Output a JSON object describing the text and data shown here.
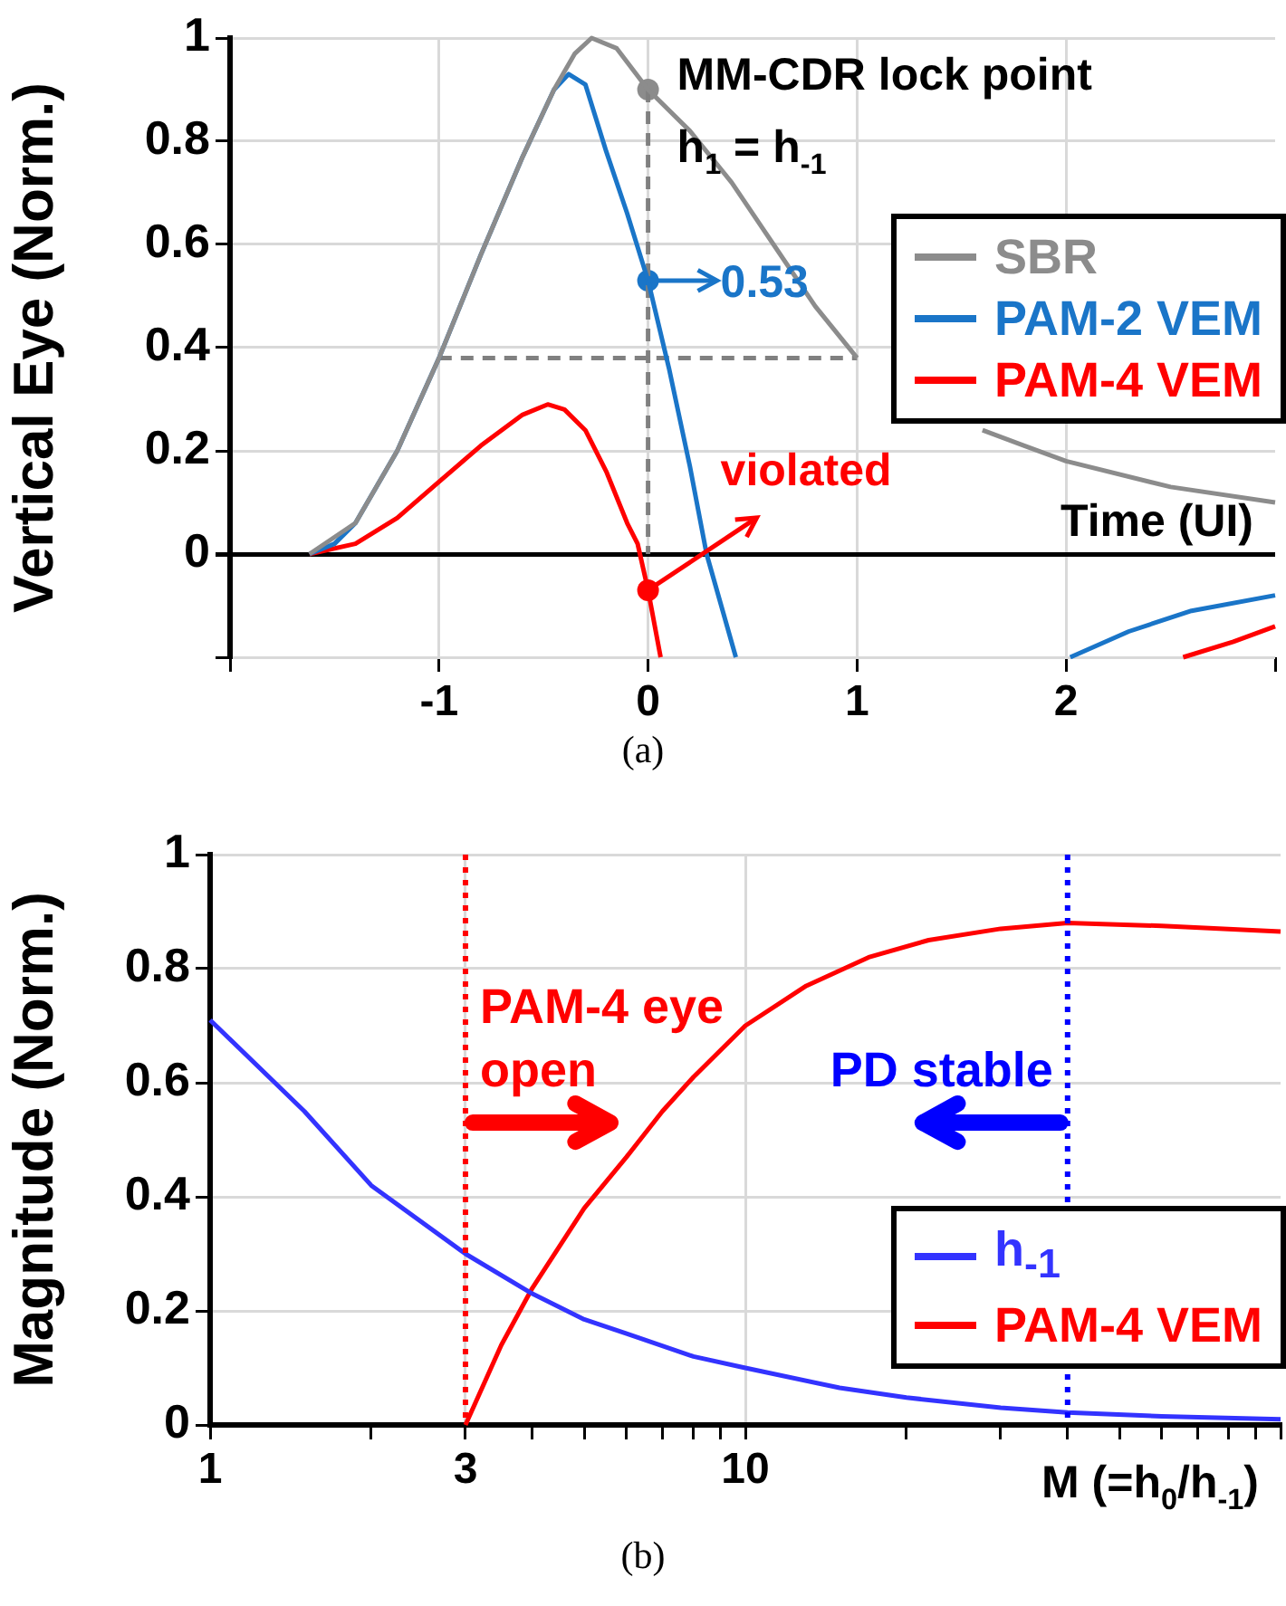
{
  "chart_data": [
    {
      "type": "line",
      "xlabel": "Time (UI)",
      "ylabel": "Vertical Eye (Norm.)",
      "xlim": [
        -2,
        3
      ],
      "ylim": [
        -0.2,
        1
      ],
      "xticks": [
        {
          "value": -2,
          "label": null
        },
        -1,
        0,
        1,
        2,
        {
          "value": 3,
          "label": null
        }
      ],
      "yticks": [
        {
          "value": -0.2,
          "label": null
        },
        0,
        0.2,
        0.4,
        0.6,
        0.8,
        1
      ],
      "grid": true,
      "legend": "right",
      "marker": "none",
      "line_style": "solid",
      "series": [
        {
          "name": "SBR",
          "color": "#8c8c8c",
          "x": [
            -1.62,
            -1.4,
            -1.2,
            -1.0,
            -0.8,
            -0.6,
            -0.45,
            -0.35,
            -0.27,
            -0.15,
            0,
            0.2,
            0.4,
            0.6,
            0.8,
            1,
            1.3,
            1.6,
            1.8,
            2,
            2.5,
            3
          ],
          "values": [
            0,
            0.06,
            0.2,
            0.38,
            0.58,
            0.77,
            0.9,
            0.97,
            1.0,
            0.98,
            0.9,
            0.82,
            0.72,
            0.6,
            0.48,
            0.38,
            null,
            0.24,
            0.21,
            0.18,
            0.13,
            0.1
          ]
        },
        {
          "name": "PAM-2 VEM",
          "color": "#1a75c8",
          "x": [
            -1.62,
            -1.5,
            -1.4,
            -1.2,
            -1.0,
            -0.8,
            -0.6,
            -0.45,
            -0.38,
            -0.3,
            -0.2,
            -0.1,
            0,
            0.1,
            0.2,
            0.28,
            0.42,
            1.2,
            2.02,
            2.3,
            2.6,
            3
          ],
          "values": [
            0,
            0.02,
            0.06,
            0.2,
            0.38,
            0.58,
            0.77,
            0.9,
            0.93,
            0.91,
            0.78,
            0.66,
            0.53,
            0.36,
            0.17,
            0,
            -0.2,
            null,
            -0.2,
            -0.15,
            -0.11,
            -0.08
          ]
        },
        {
          "name": "PAM-4 VEM",
          "color": "#ff0000",
          "x": [
            -1.62,
            -1.4,
            -1.2,
            -1.0,
            -0.8,
            -0.6,
            -0.48,
            -0.4,
            -0.3,
            -0.2,
            -0.1,
            -0.05,
            0,
            0.06,
            1.2,
            2.56,
            2.8,
            3
          ],
          "values": [
            0,
            0.02,
            0.07,
            0.14,
            0.21,
            0.27,
            0.29,
            0.28,
            0.24,
            0.16,
            0.06,
            0.02,
            -0.07,
            -0.2,
            null,
            -0.2,
            -0.17,
            -0.14
          ]
        },
        {
          "color": "#808080",
          "line_style": "dashed",
          "x": [
            0,
            0
          ],
          "values": [
            0.9,
            0
          ]
        },
        {
          "color": "#808080",
          "line_style": "dashed",
          "x": [
            -1,
            1
          ],
          "values": [
            0.38,
            0.38
          ]
        },
        {
          "type": "scatter",
          "marker": "circle",
          "color": "#8c8c8c",
          "x": [
            0
          ],
          "values": [
            0.9
          ]
        },
        {
          "type": "scatter",
          "marker": "circle",
          "color": "#1a75c8",
          "x": [
            0
          ],
          "values": [
            0.53
          ]
        },
        {
          "type": "scatter",
          "marker": "circle",
          "color": "#ff0000",
          "x": [
            0
          ],
          "values": [
            -0.07
          ]
        }
      ],
      "annotations": [
        "MM-CDR lock point",
        "h$_{1}$ = h$_{-1}$",
        {
          "text": "0.53",
          "x": 0,
          "y": 0.53
        },
        {
          "text": "violated",
          "x": 0,
          "y": -0.07
        },
        "(a)"
      ]
    },
    {
      "type": "line",
      "xlabel": "M (=h$_{0}$/h$_{-1}$)",
      "ylabel": "Magnitude (Norm.)",
      "log": "x",
      "xlim": [
        1,
        100
      ],
      "ylim": [
        0,
        1
      ],
      "xticks": [
        1,
        {
          "value": 2,
          "label": null
        },
        3,
        {
          "value": 4,
          "label": null
        },
        {
          "value": 5,
          "label": null
        },
        {
          "value": 6,
          "label": null
        },
        {
          "value": 7,
          "label": null
        },
        {
          "value": 8,
          "label": null
        },
        {
          "value": 9,
          "label": null
        },
        10,
        {
          "value": 20,
          "label": null
        },
        {
          "value": 30,
          "label": null
        },
        {
          "value": 40,
          "label": null
        },
        {
          "value": 50,
          "label": null
        },
        {
          "value": 60,
          "label": null
        },
        {
          "value": 70,
          "label": null
        },
        {
          "value": 80,
          "label": null
        },
        {
          "value": 90,
          "label": null
        },
        {
          "value": 100,
          "label": null
        }
      ],
      "yticks": [
        0,
        0.2,
        0.4,
        0.6,
        0.8,
        1
      ],
      "grid": true,
      "legend": "bottom right",
      "marker": "none",
      "line_style": "solid",
      "series": [
        {
          "name": "h$_{-1}$",
          "color": "#3333ff",
          "x": [
            1,
            1.5,
            2,
            3,
            4,
            5,
            6,
            8,
            10,
            15,
            20,
            30,
            40,
            60,
            100
          ],
          "values": [
            0.71,
            0.55,
            0.42,
            0.3,
            0.23,
            0.185,
            0.16,
            0.12,
            0.1,
            0.065,
            0.048,
            0.03,
            0.022,
            0.015,
            0.01
          ]
        },
        {
          "name": "PAM-4 VEM",
          "color": "#ff0000",
          "x": [
            3,
            3.5,
            4,
            5,
            6,
            7,
            8,
            10,
            13,
            17,
            22,
            30,
            40,
            60,
            100
          ],
          "values": [
            0,
            0.14,
            0.24,
            0.38,
            0.47,
            0.55,
            0.61,
            0.7,
            0.77,
            0.82,
            0.85,
            0.87,
            0.88,
            0.875,
            0.865
          ]
        }
      ],
      "ref_lines": [
        {
          "axis": "x",
          "value": 3,
          "color": "#ff0000",
          "line_style": "dotted"
        },
        {
          "axis": "x",
          "value": 40,
          "color": "#0000ff",
          "line_style": "dotted"
        }
      ],
      "annotations": [
        {
          "text": "PAM-4 eye open",
          "x": 3,
          "y": 0.53
        },
        {
          "text": "PD stable",
          "x": 40,
          "y": 0.53
        },
        "(b)"
      ]
    }
  ]
}
